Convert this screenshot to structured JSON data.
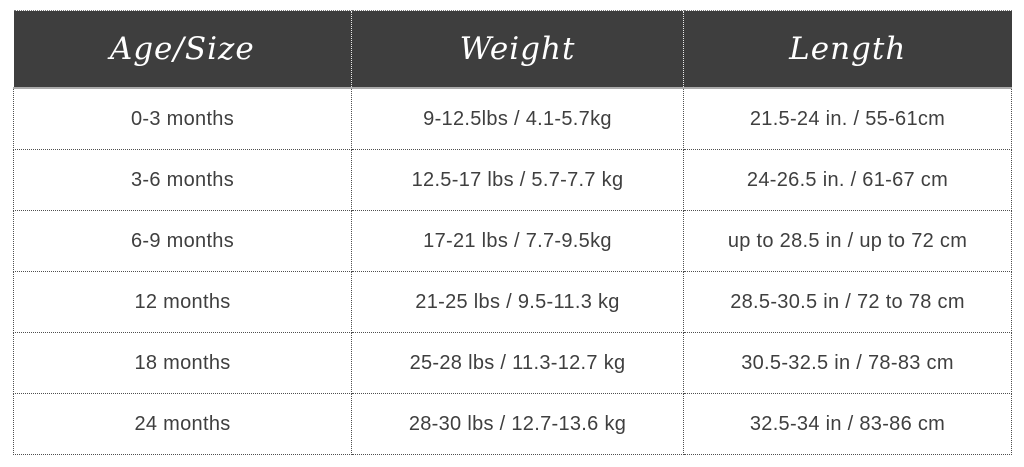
{
  "table": {
    "columns": [
      {
        "label": "Age/Size"
      },
      {
        "label": "Weight"
      },
      {
        "label": "Length"
      }
    ],
    "rows": [
      {
        "age": "0-3 months",
        "weight": "9-12.5lbs / 4.1-5.7kg",
        "length": "21.5-24 in. / 55-61cm"
      },
      {
        "age": "3-6 months",
        "weight": "12.5-17 lbs / 5.7-7.7 kg",
        "length": "24-26.5 in. / 61-67 cm"
      },
      {
        "age": "6-9 months",
        "weight": "17-21 lbs / 7.7-9.5kg",
        "length": "up to 28.5 in / up to 72 cm"
      },
      {
        "age": "12 months",
        "weight": "21-25 lbs / 9.5-11.3 kg",
        "length": "28.5-30.5 in / 72 to 78 cm"
      },
      {
        "age": "18 months",
        "weight": "25-28 lbs / 11.3-12.7 kg",
        "length": "30.5-32.5 in / 78-83 cm"
      },
      {
        "age": "24 months",
        "weight": "28-30 lbs / 12.7-13.6 kg",
        "length": "32.5-34 in / 83-86 cm"
      }
    ],
    "colors": {
      "header_bg": "#3e3e3e",
      "header_text": "#ffffff",
      "body_text": "#3f3f3f",
      "border_dotted": "#4f4f4f"
    }
  },
  "chart_data": {
    "type": "table",
    "columns": [
      "Age/Size",
      "Weight",
      "Length"
    ],
    "rows": [
      [
        "0-3 months",
        "9-12.5lbs / 4.1-5.7kg",
        "21.5-24 in. / 55-61cm"
      ],
      [
        "3-6 months",
        "12.5-17 lbs / 5.7-7.7 kg",
        "24-26.5 in. / 61-67 cm"
      ],
      [
        "6-9 months",
        "17-21 lbs / 7.7-9.5kg",
        "up to 28.5 in / up to 72 cm"
      ],
      [
        "12 months",
        "21-25 lbs / 9.5-11.3 kg",
        "28.5-30.5 in / 72 to 78 cm"
      ],
      [
        "18 months",
        "25-28 lbs / 11.3-12.7 kg",
        "30.5-32.5 in / 78-83 cm"
      ],
      [
        "24 months",
        "28-30 lbs / 12.7-13.6 kg",
        "32.5-34 in / 83-86 cm"
      ]
    ]
  }
}
